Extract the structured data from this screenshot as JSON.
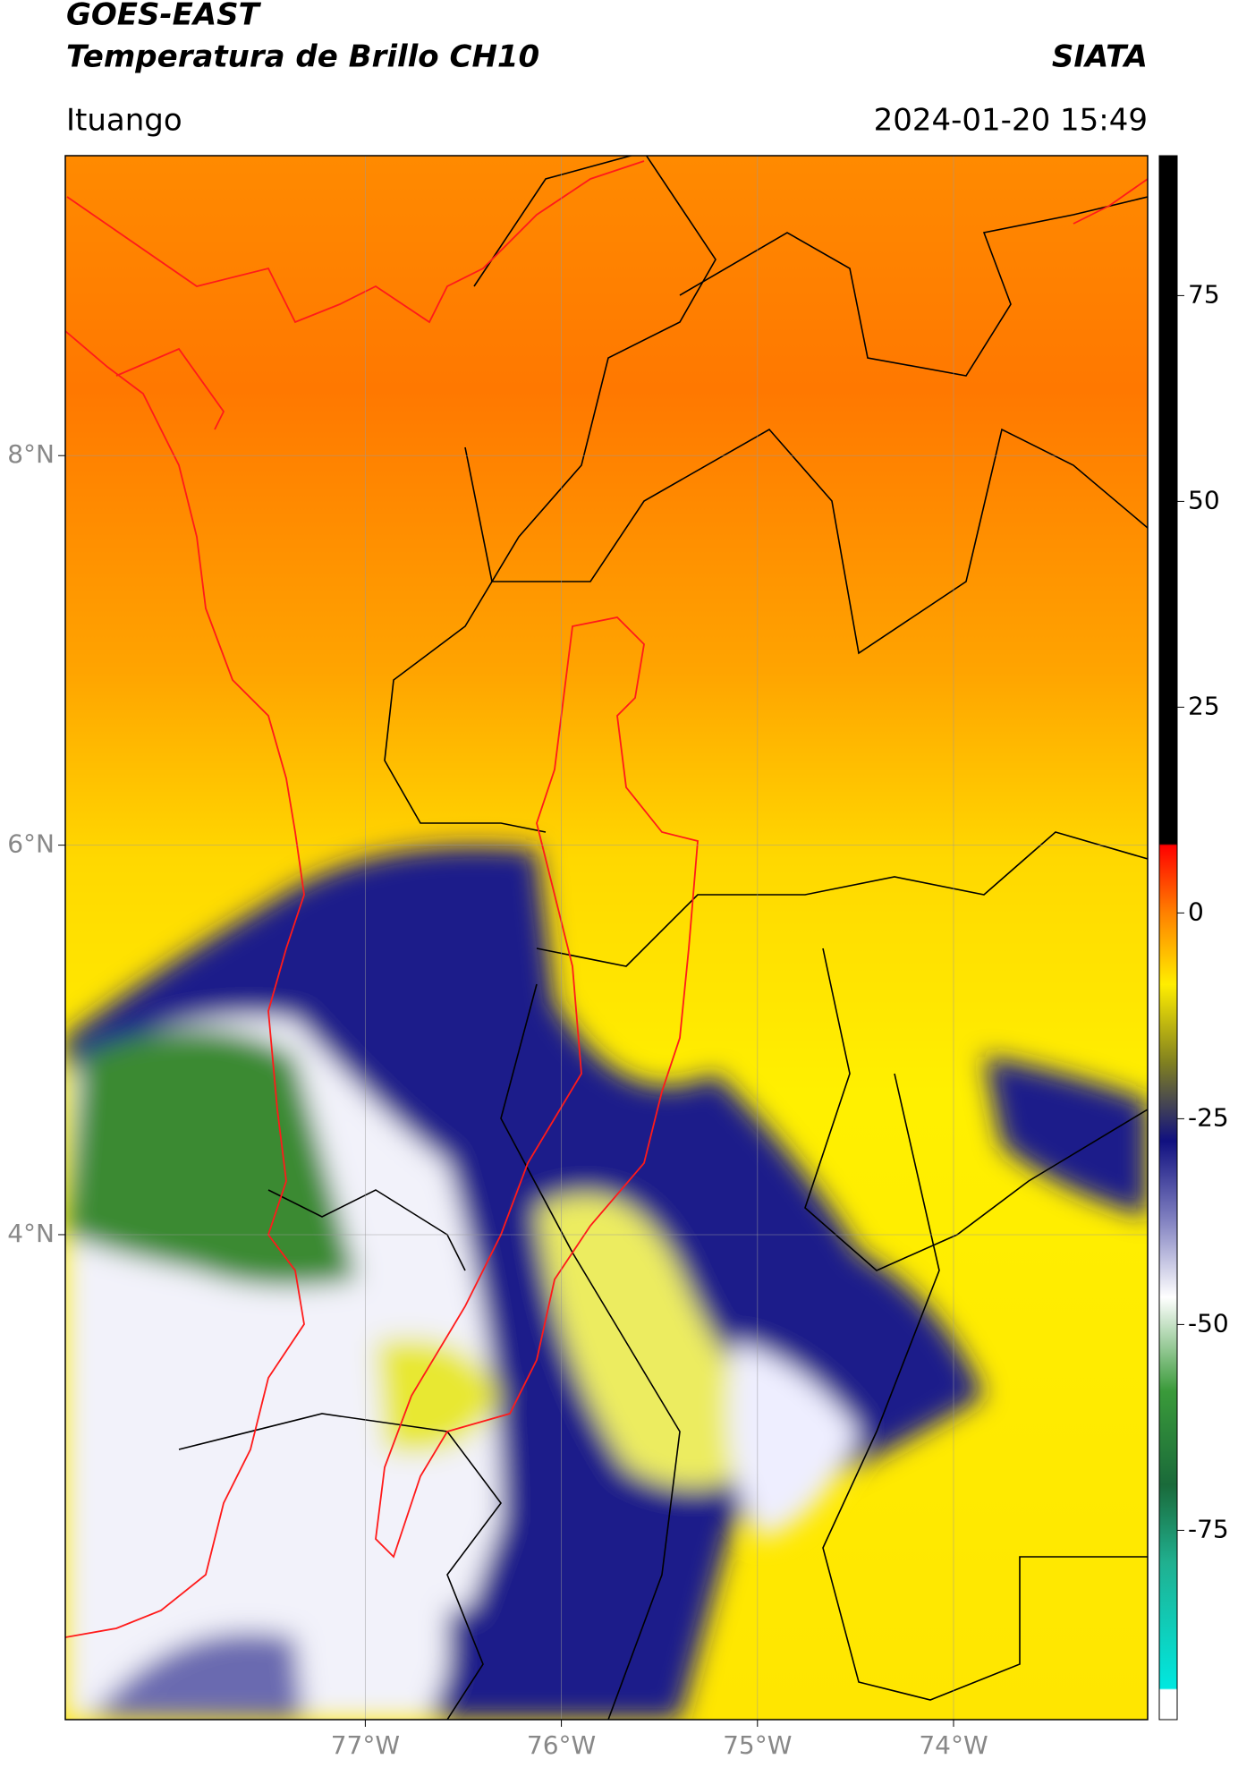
{
  "chart_data": {
    "type": "map",
    "title": "GOES-EAST",
    "subtitle": "Temperatura de Brillo CH10",
    "brand": "SIATA",
    "location": "Ituango",
    "datetime": "2024-01-20 15:49",
    "xlim": [
      -78.53,
      -73.01
    ],
    "ylim": [
      1.51,
      9.54
    ],
    "xticks": [
      {
        "value": -77,
        "label": "77°W"
      },
      {
        "value": -76,
        "label": "76°W"
      },
      {
        "value": -75,
        "label": "75°W"
      },
      {
        "value": -74,
        "label": "74°W"
      }
    ],
    "yticks": [
      {
        "value": 8,
        "label": "8°N"
      },
      {
        "value": 6,
        "label": "6°N"
      },
      {
        "value": 4,
        "label": "4°N"
      }
    ],
    "grid": true,
    "colorbar": {
      "lim": [
        -98,
        92
      ],
      "ticks": [
        75,
        50,
        25,
        0,
        -25,
        -50,
        -75
      ]
    }
  }
}
